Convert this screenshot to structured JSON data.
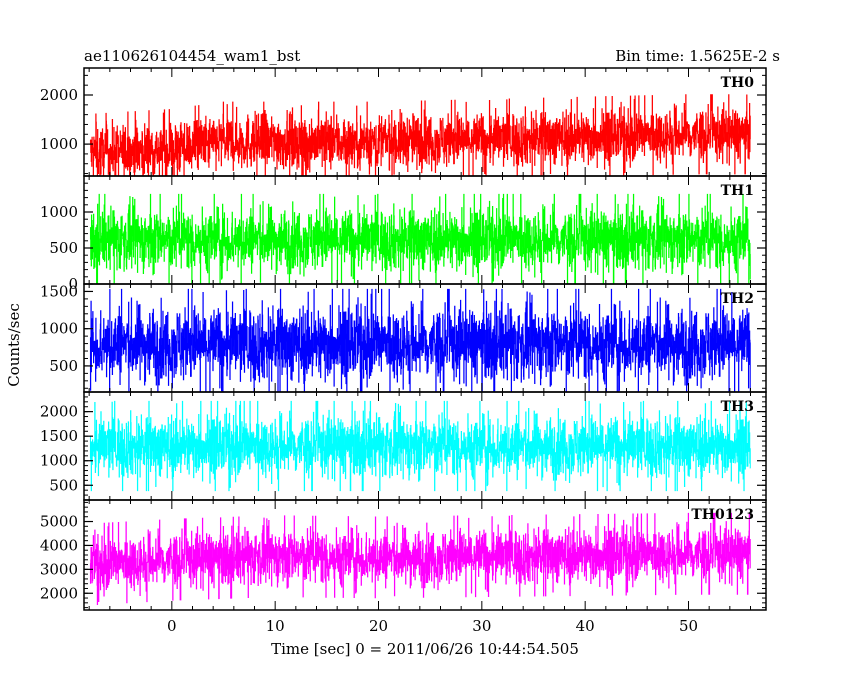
{
  "header": {
    "left_title": "ae110626104454_wam1_bst",
    "right_title": "Bin time: 1.5625E-2 s"
  },
  "chart_data": {
    "type": "line",
    "style": "histogram-step lightcurve, 5 stacked panels sharing x axis",
    "xlabel": "Time [sec] 0 = 2011/06/26 10:44:54.505",
    "ylabel": "Counts/sec",
    "xlim": [
      -8.5,
      57.5
    ],
    "x_ticks": [
      0,
      10,
      20,
      30,
      40,
      50
    ],
    "data_x_range": [
      -7.9,
      56.0
    ],
    "bin_time_s": 0.015625,
    "panels": [
      {
        "name": "TH0",
        "color": "#ff0000",
        "ylim": [
          350,
          2550
        ],
        "y_ticks": [
          1000,
          2000
        ],
        "trend_x": [
          -8,
          0,
          5,
          10,
          20,
          30,
          40,
          50,
          56
        ],
        "trend_mean": [
          800,
          900,
          1050,
          1050,
          1050,
          1100,
          1150,
          1200,
          1200
        ],
        "spread": 620
      },
      {
        "name": "TH1",
        "color": "#00ff00",
        "ylim": [
          0,
          1500
        ],
        "y_ticks": [
          0,
          500,
          1000
        ],
        "trend_x": [
          -8,
          56
        ],
        "trend_mean": [
          620,
          620
        ],
        "spread": 480
      },
      {
        "name": "TH2",
        "color": "#0000ff",
        "ylim": [
          150,
          1600
        ],
        "y_ticks": [
          500,
          1000,
          1500
        ],
        "trend_x": [
          -8,
          56
        ],
        "trend_mean": [
          800,
          800
        ],
        "spread": 560
      },
      {
        "name": "TH3",
        "color": "#00ffff",
        "ylim": [
          200,
          2400
        ],
        "y_ticks": [
          500,
          1000,
          1500,
          2000
        ],
        "trend_x": [
          -8,
          56
        ],
        "trend_mean": [
          1300,
          1300
        ],
        "spread": 700
      },
      {
        "name": "TH0123",
        "color": "#ff00ff",
        "ylim": [
          1300,
          5900
        ],
        "y_ticks": [
          2000,
          3000,
          4000,
          5000
        ],
        "trend_x": [
          -8,
          0,
          10,
          20,
          30,
          40,
          50,
          56
        ],
        "trend_mean": [
          3200,
          3400,
          3550,
          3500,
          3550,
          3600,
          3650,
          3650
        ],
        "spread": 1300
      }
    ]
  }
}
